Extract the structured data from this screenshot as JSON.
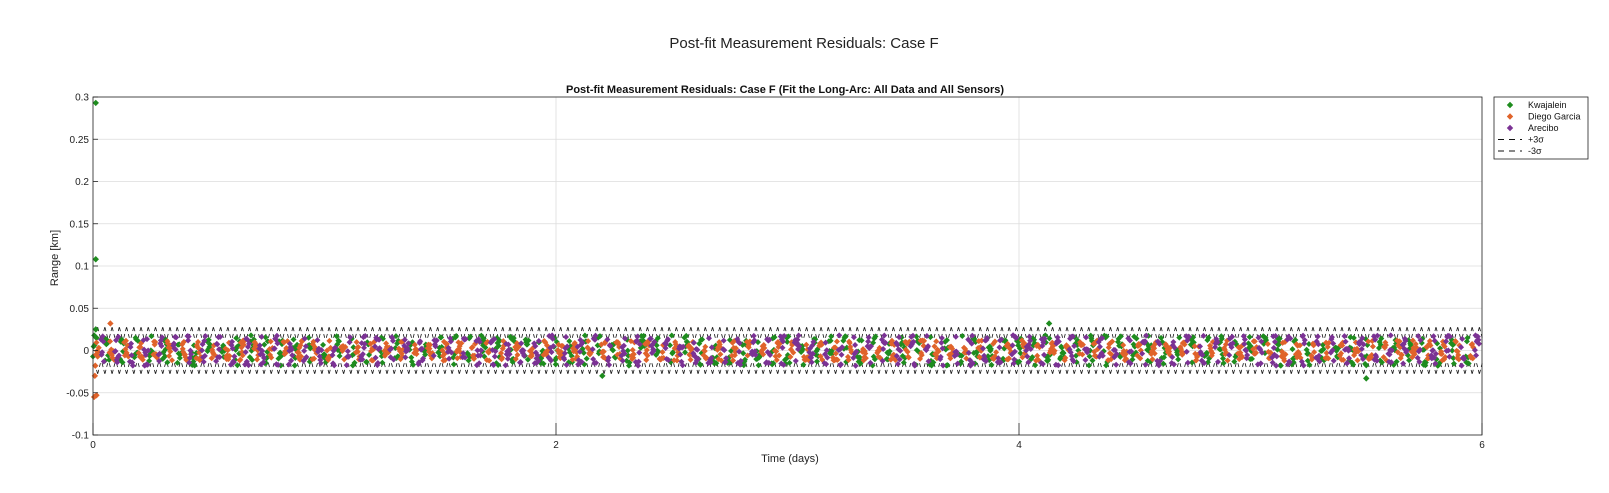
{
  "figure": {
    "suptitle": "Post-fit Measurement Residuals: Case F"
  },
  "chart_data": {
    "type": "scatter",
    "title": "Post-fit Measurement Residuals: Case F (Fit the Long-Arc: All Data and All Sensors)",
    "xlabel": "Time (days)",
    "ylabel": "Range [km]",
    "xlim": [
      0,
      6
    ],
    "ylim": [
      -0.1,
      0.3
    ],
    "xticks": [
      0,
      2,
      4,
      6
    ],
    "yticks": [
      -0.1,
      -0.05,
      0,
      0.05,
      0.1,
      0.15,
      0.2,
      0.25,
      0.3
    ],
    "ytick_labels": [
      "-0.1",
      "-0.05",
      "0",
      "0.05",
      "0.1",
      "0.15",
      "0.2",
      "0.25",
      "0.3"
    ],
    "xtick_labels": [
      "0",
      "2",
      "4",
      "6"
    ],
    "grid": true,
    "legend_position": "outside-top-right",
    "pass_period_days": 0.0625,
    "series": [
      {
        "name": "Kwajalein",
        "color": "#1e8c1e",
        "marker": "diamond",
        "pass_offset_days": 0.0,
        "typical_abs_residual": 0.018,
        "outliers": [
          [
            0.012,
            0.293
          ],
          [
            0.012,
            0.108
          ],
          [
            0.012,
            0.025
          ],
          [
            0.015,
            0.015
          ],
          [
            4.13,
            0.032
          ],
          [
            2.2,
            -0.03
          ],
          [
            5.5,
            -0.033
          ]
        ]
      },
      {
        "name": "Diego Garcia",
        "color": "#e0632a",
        "marker": "diamond",
        "pass_offset_days": 0.02,
        "typical_abs_residual": 0.012,
        "outliers": [
          [
            0.005,
            -0.055
          ],
          [
            0.015,
            -0.053
          ],
          [
            0.075,
            0.032
          ],
          [
            0.008,
            -0.03
          ],
          [
            0.01,
            -0.018
          ]
        ]
      },
      {
        "name": "Arecibo",
        "color": "#7b3294",
        "marker": "diamond",
        "pass_offset_days": 0.042,
        "typical_abs_residual": 0.018,
        "outliers": []
      },
      {
        "name": "+3σ",
        "line": "dashed",
        "color": "#000000",
        "envelope_km": 0.029
      },
      {
        "name": "-3σ",
        "line": "dashed",
        "color": "#000000",
        "envelope_km": -0.029
      }
    ]
  },
  "legend": {
    "items": [
      "Kwajalein",
      "Diego Garcia",
      "Arecibo",
      "+3σ",
      "-3σ"
    ]
  }
}
